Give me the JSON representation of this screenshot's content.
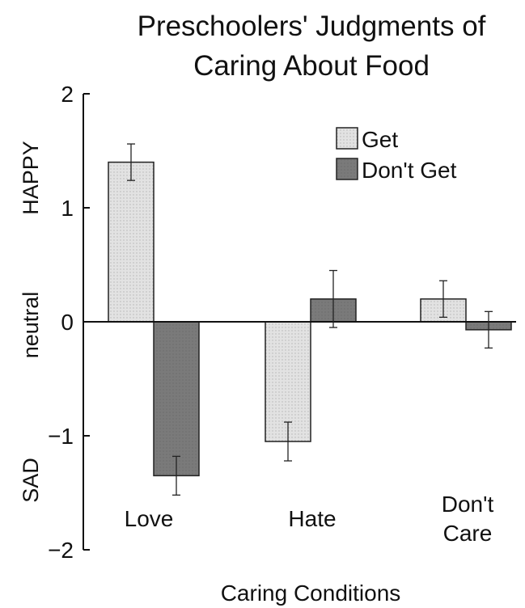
{
  "chart_data": {
    "type": "bar",
    "title_lines": [
      "Preschoolers' Judgments of",
      "Caring About Food"
    ],
    "xlabel": "Caring Conditions",
    "ylabels": [
      "HAPPY",
      "neutral",
      "SAD"
    ],
    "categories": [
      [
        "Love"
      ],
      [
        "Hate"
      ],
      [
        "Don't",
        "Care"
      ]
    ],
    "ylim": [
      -2,
      2
    ],
    "yticks": [
      {
        "value": 2,
        "label": "2"
      },
      {
        "value": 1,
        "label": "1"
      },
      {
        "value": 0,
        "label": "0"
      },
      {
        "value": -1,
        "label": "−1"
      },
      {
        "value": -2,
        "label": "−2"
      }
    ],
    "series": [
      {
        "name": "Get",
        "color": "#dcdcdc",
        "values": [
          1.4,
          -1.05,
          0.2
        ],
        "errors": [
          0.16,
          0.17,
          0.16
        ]
      },
      {
        "name": "Don't Get",
        "color": "#7a7a7a",
        "values": [
          -1.35,
          0.2,
          -0.07
        ],
        "errors": [
          0.17,
          0.25,
          0.16
        ]
      }
    ],
    "legend_position": "top-right",
    "grid": false
  }
}
